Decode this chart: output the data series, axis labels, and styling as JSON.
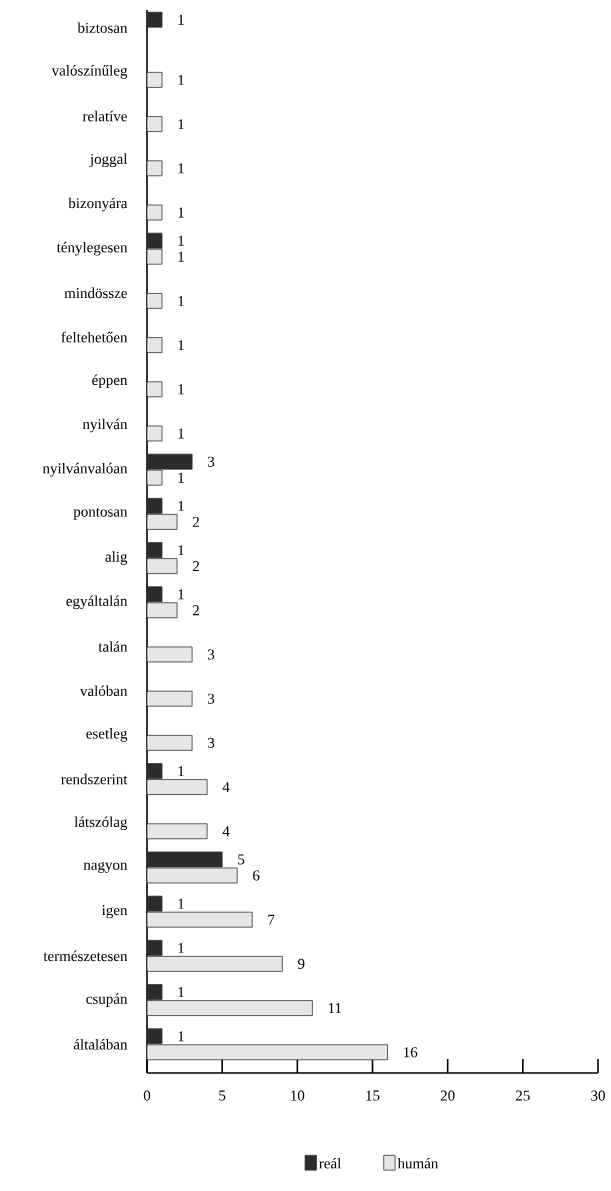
{
  "chart_data": {
    "type": "bar",
    "orientation": "horizontal",
    "data_labels": true,
    "legend": "bottom",
    "categories": [
      "biztosan",
      "valószínűleg",
      "relatíve",
      "joggal",
      "bizonyára",
      "ténylegesen",
      "mindössze",
      "feltehetően",
      "éppen",
      "nyilván",
      "nyilvánvalóan",
      "pontosan",
      "alig",
      "egyáltalán",
      "talán",
      "valóban",
      "esetleg",
      "rendszerint",
      "látszólag",
      "nagyon",
      "igen",
      "természetesen",
      "csupán",
      "általában"
    ],
    "series": [
      {
        "name": "reál",
        "color": "#2b2b2b",
        "values": [
          1,
          null,
          null,
          null,
          null,
          1,
          null,
          null,
          null,
          null,
          3,
          1,
          1,
          1,
          null,
          null,
          null,
          1,
          null,
          5,
          1,
          1,
          1,
          1
        ]
      },
      {
        "name": "humán",
        "color": "#e6e6e6",
        "values": [
          null,
          1,
          1,
          1,
          1,
          1,
          1,
          1,
          1,
          1,
          1,
          2,
          2,
          2,
          3,
          3,
          3,
          4,
          4,
          6,
          7,
          9,
          11,
          16
        ]
      }
    ],
    "xlim": [
      0,
      30
    ],
    "xticks": [
      0,
      5,
      10,
      15,
      20,
      25,
      30
    ]
  }
}
